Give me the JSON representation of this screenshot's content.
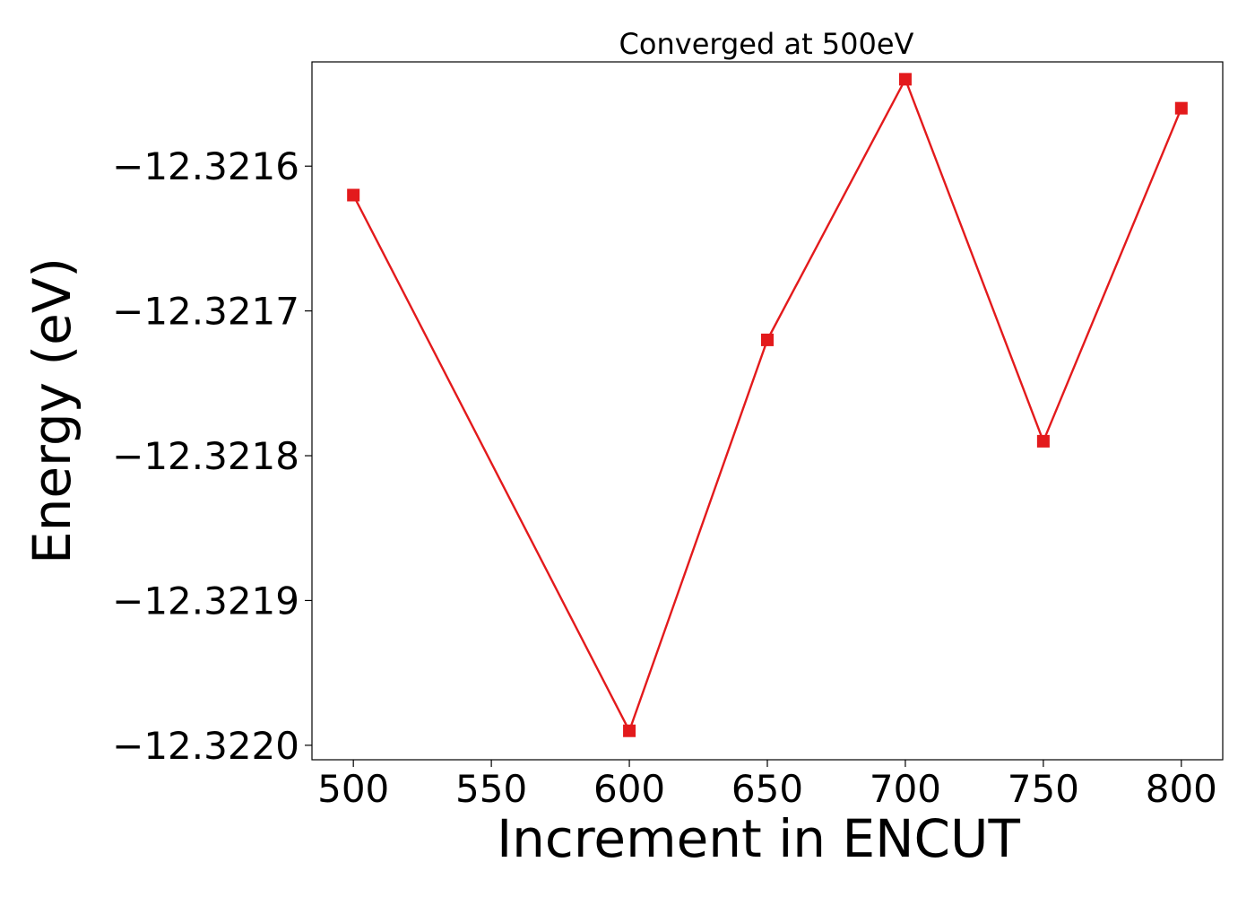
{
  "chart_data": {
    "type": "line",
    "title": "Converged at 500eV",
    "xlabel": "Increment in ENCUT",
    "ylabel": "Energy (eV)",
    "x": [
      500,
      600,
      650,
      700,
      750,
      800
    ],
    "series": [
      {
        "values": [
          -12.32162,
          -12.32199,
          -12.32172,
          -12.32154,
          -12.32179,
          -12.32156
        ],
        "color": "#e31a1c",
        "marker": "square"
      }
    ],
    "xticks": [
      500,
      550,
      600,
      650,
      700,
      750,
      800
    ],
    "xtick_labels": [
      "500",
      "550",
      "600",
      "650",
      700,
      "750",
      "800"
    ],
    "yticks": [
      -12.3216,
      -12.3217,
      -12.3218,
      -12.3219,
      -12.322
    ],
    "ytick_labels": [
      "−12.3216",
      "−12.3217",
      "−12.3218",
      "−12.3219",
      "−12.3220"
    ],
    "xlim": [
      485,
      815
    ],
    "ylim": [
      -12.32201,
      -12.321528
    ],
    "grid": false,
    "legend": false
  }
}
